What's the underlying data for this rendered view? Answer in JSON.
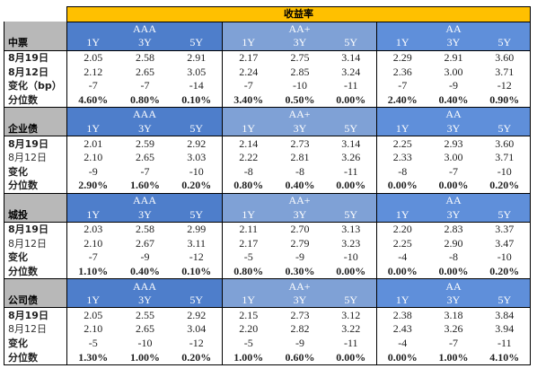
{
  "title": "收益率",
  "groups": [
    "AAA",
    "AA+",
    "AA"
  ],
  "tenors": [
    "1Y",
    "3Y",
    "5Y"
  ],
  "row_labels": {
    "current": "8月19日",
    "previous": "8月12日",
    "change": "变化（bp）",
    "change_short": "变化",
    "percentile": "分位数"
  },
  "sections": [
    {
      "name": "中票",
      "current": [
        "2.05",
        "2.58",
        "2.91",
        "2.17",
        "2.75",
        "3.14",
        "2.29",
        "2.91",
        "3.60"
      ],
      "previous": [
        "2.12",
        "2.65",
        "3.05",
        "2.24",
        "2.85",
        "3.24",
        "2.36",
        "3.00",
        "3.71"
      ],
      "change": [
        "-7",
        "-7",
        "-14",
        "-7",
        "-10",
        "-11",
        "-7",
        "-9",
        "-12"
      ],
      "percentile": [
        "4.60%",
        "0.80%",
        "0.10%",
        "3.40%",
        "0.50%",
        "0.00%",
        "2.40%",
        "0.40%",
        "0.90%"
      ]
    },
    {
      "name": "企业债",
      "current": [
        "2.01",
        "2.59",
        "2.92",
        "2.14",
        "2.73",
        "3.14",
        "2.25",
        "2.93",
        "3.60"
      ],
      "previous": [
        "2.10",
        "2.65",
        "3.03",
        "2.22",
        "2.81",
        "3.26",
        "2.33",
        "3.00",
        "3.71"
      ],
      "change": [
        "-9",
        "-7",
        "-10",
        "-8",
        "-8",
        "-11",
        "-8",
        "-7",
        "-10"
      ],
      "percentile": [
        "2.90%",
        "1.60%",
        "0.20%",
        "0.80%",
        "0.40%",
        "0.00%",
        "0.00%",
        "0.00%",
        "0.20%"
      ]
    },
    {
      "name": "城投",
      "current": [
        "2.03",
        "2.58",
        "2.99",
        "2.11",
        "2.70",
        "3.13",
        "2.20",
        "2.83",
        "3.37"
      ],
      "previous": [
        "2.10",
        "2.67",
        "3.11",
        "2.17",
        "2.79",
        "3.23",
        "2.25",
        "2.90",
        "3.47"
      ],
      "change": [
        "-7",
        "-9",
        "-12",
        "-5",
        "-9",
        "-10",
        "-4",
        "-8",
        "-10"
      ],
      "percentile": [
        "1.10%",
        "0.40%",
        "0.10%",
        "0.80%",
        "0.30%",
        "0.00%",
        "0.00%",
        "0.00%",
        "0.20%"
      ]
    },
    {
      "name": "公司债",
      "current": [
        "2.05",
        "2.55",
        "2.92",
        "2.15",
        "2.73",
        "3.12",
        "2.38",
        "3.18",
        "3.84"
      ],
      "previous": [
        "2.10",
        "2.65",
        "3.04",
        "2.20",
        "2.82",
        "3.22",
        "2.43",
        "3.26",
        "3.94"
      ],
      "change": [
        "-5",
        "-10",
        "-12",
        "-5",
        "-9",
        "-11",
        "-4",
        "-7",
        "-11"
      ],
      "percentile": [
        "1.30%",
        "1.00%",
        "0.20%",
        "1.00%",
        "0.60%",
        "0.00%",
        "0.00%",
        "1.00%",
        "4.10%"
      ]
    }
  ],
  "colors": {
    "title_bg": "#ffc000",
    "aaa_bg": "#4e7ecb",
    "aaplus_bg": "#7fa1d6",
    "aa_bg": "#5f8fda",
    "section_label_bg": "#b8b8b8"
  }
}
